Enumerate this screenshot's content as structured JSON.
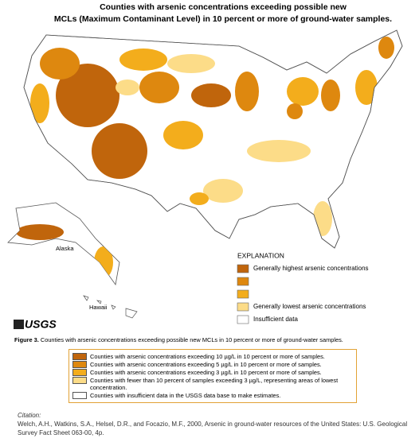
{
  "title": [
    "Counties with arsenic concentrations exceeding possible new",
    "MCLs (Maximum Contaminant Level) in 10 percent or more of ground-water samples."
  ],
  "map_labels": {
    "alaska": "Alaska",
    "hawaii": "Hawaii"
  },
  "logo": "USGS",
  "explanation": {
    "title": "EXPLANATION",
    "items": [
      {
        "color": "#c0650c",
        "label": "Generally highest arsenic concentrations"
      },
      {
        "color": "#de880f"
      },
      {
        "color": "#f3ad1c"
      },
      {
        "color": "#fcdc88",
        "label": "Generally lowest arsenic concentrations"
      },
      {
        "color": "#ffffff",
        "label": "Insufficient data"
      }
    ]
  },
  "figure_caption": {
    "label": "Figure 3.",
    "text": "Counties with arsenic concentrations exceeding possible new MCLs in 10 percent or more of ground-water samples."
  },
  "key": [
    "Counties with arsenic concentrations exceeding 10 µg/L in 10 percent or more of samples.",
    "Counties with arsenic concentrations exceeding 5 µg/L in 10 percent or more of samples.",
    "Counties with arsenic concentrations exceeding 3 µg/L in 10 percent or more of samples.",
    "Counties with fewer than 10 percent of samples exceeding 3 µg/L, representing areas of lowest concentration.",
    "Counties with insufficient data in the USGS data base to make estimates."
  ],
  "citation": {
    "label": "Citation:",
    "text": "Welch, A.H., Watkins, S.A., Helsel, D.R., and Focazio, M.F., 2000, Arsenic in ground-water resources of the United States: U.S. Geological Survey Fact Sheet 063-00, 4p."
  }
}
